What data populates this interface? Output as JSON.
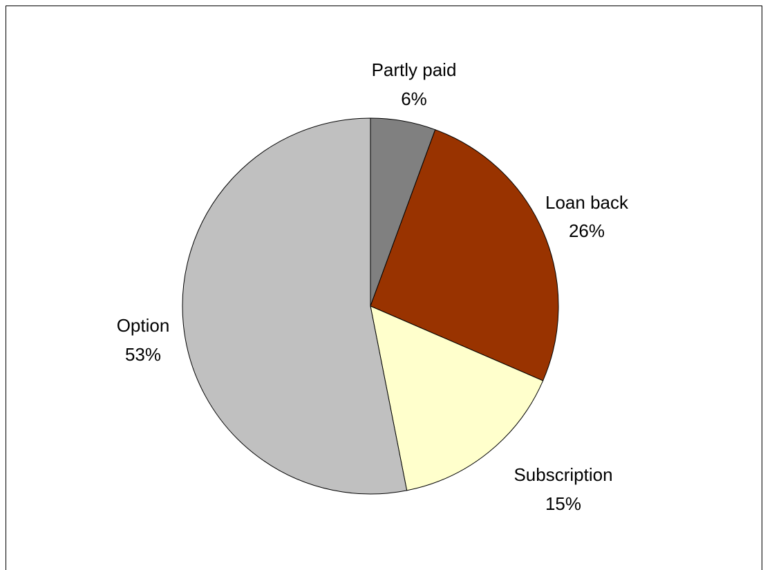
{
  "chart_data": {
    "type": "pie",
    "title": "",
    "start_angle_deg": 0,
    "direction": "clockwise",
    "slices": [
      {
        "label": "Partly paid",
        "percent_label": "6%",
        "value": 5.6,
        "color": "#808080"
      },
      {
        "label": "Loan back",
        "percent_label": "26%",
        "value": 25.9,
        "color": "#993300"
      },
      {
        "label": "Subscription",
        "percent_label": "15%",
        "value": 15.4,
        "color": "#FFFFCC"
      },
      {
        "label": "Option",
        "percent_label": "53%",
        "value": 53.1,
        "color": "#C0C0C0"
      }
    ],
    "legend": "none",
    "border_color": "#000000"
  }
}
